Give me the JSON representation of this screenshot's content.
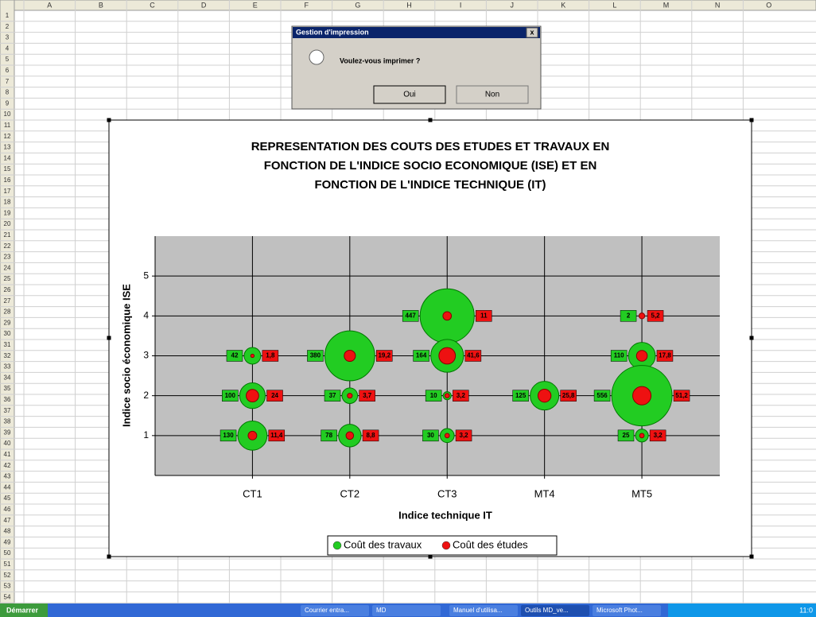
{
  "spreadsheet": {
    "columns": [
      "A",
      "B",
      "C",
      "D",
      "E",
      "F",
      "G",
      "H",
      "I",
      "J",
      "K",
      "L",
      "M",
      "N",
      "O"
    ],
    "rows": [
      1,
      2,
      3,
      4,
      5,
      6,
      7,
      8,
      9,
      10,
      11,
      12,
      13,
      14,
      15,
      16,
      17,
      18,
      19,
      20,
      21,
      22,
      23,
      24,
      25,
      26,
      27,
      28,
      29,
      30,
      31,
      32,
      33,
      34,
      35,
      36,
      37,
      38,
      39,
      40,
      41,
      42,
      43,
      44,
      45,
      46,
      47,
      48,
      49,
      50,
      51,
      52,
      53,
      54
    ]
  },
  "dialog": {
    "title": "Gestion d'impression",
    "close": "x",
    "message": "Voulez-vous imprimer ?",
    "buttons": [
      "Oui",
      "Non"
    ]
  },
  "taskbar": {
    "start": "Démarrer",
    "items": [
      "Courrier entra...",
      "MD",
      "Manuel d'utilisa...",
      "Outils MD_ve...",
      "Microsoft Phot..."
    ],
    "clock": "11:0"
  },
  "chart_data": {
    "type": "bubble",
    "title": [
      "REPRESENTATION DES COUTS DES ETUDES ET TRAVAUX EN",
      "FONCTION DE L'INDICE SOCIO ECONOMIQUE (ISE)  ET EN",
      "FONCTION DE L'INDICE TECHNIQUE (IT)"
    ],
    "x_label": "Indice technique IT",
    "y_label": "Indice socio économique ISE",
    "xlim": [
      0,
      5.8
    ],
    "xticks": [
      {
        "value": 1,
        "label": "CT1"
      },
      {
        "value": 2,
        "label": "CT2"
      },
      {
        "value": 3,
        "label": "CT3"
      },
      {
        "value": 4,
        "label": "MT4"
      },
      {
        "value": 5,
        "label": "MT5"
      }
    ],
    "ylim": [
      0,
      6
    ],
    "yticks": [
      1,
      2,
      3,
      4,
      5
    ],
    "grid": true,
    "legend": "bottom",
    "series": [
      {
        "name": "Coût des travaux",
        "color": "#22cc22",
        "x": [
          1,
          1,
          1,
          2,
          2,
          2,
          3,
          3,
          3,
          3,
          4,
          5,
          5,
          5,
          5
        ],
        "values": [
          3,
          2,
          1,
          3,
          2,
          1,
          4,
          3,
          2,
          1,
          2,
          4,
          3,
          2,
          1
        ],
        "sizes": [
          42,
          100,
          130,
          380,
          37,
          78,
          447,
          164,
          10,
          30,
          125,
          2,
          110,
          556,
          25
        ]
      },
      {
        "name": "Coût des études",
        "color": "#ee1111",
        "x": [
          1,
          1,
          1,
          2,
          2,
          2,
          3,
          3,
          3,
          3,
          4,
          5,
          5,
          5,
          5
        ],
        "values": [
          3,
          2,
          1,
          3,
          2,
          1,
          4,
          3,
          2,
          1,
          2,
          4,
          3,
          2,
          1
        ],
        "sizes": [
          1.8,
          24,
          11.4,
          19.2,
          3.7,
          8.8,
          11,
          41.6,
          3.2,
          3.2,
          25.8,
          5.2,
          17.8,
          51.2,
          3.2
        ],
        "value_labels": [
          "1,8",
          "24",
          "11,4",
          "19,2",
          "3,7",
          "8,8",
          "11",
          "41,6",
          "3,2",
          "3,2",
          "25,8",
          "5,2",
          "17,8",
          "51,2",
          "3,2"
        ]
      }
    ]
  }
}
